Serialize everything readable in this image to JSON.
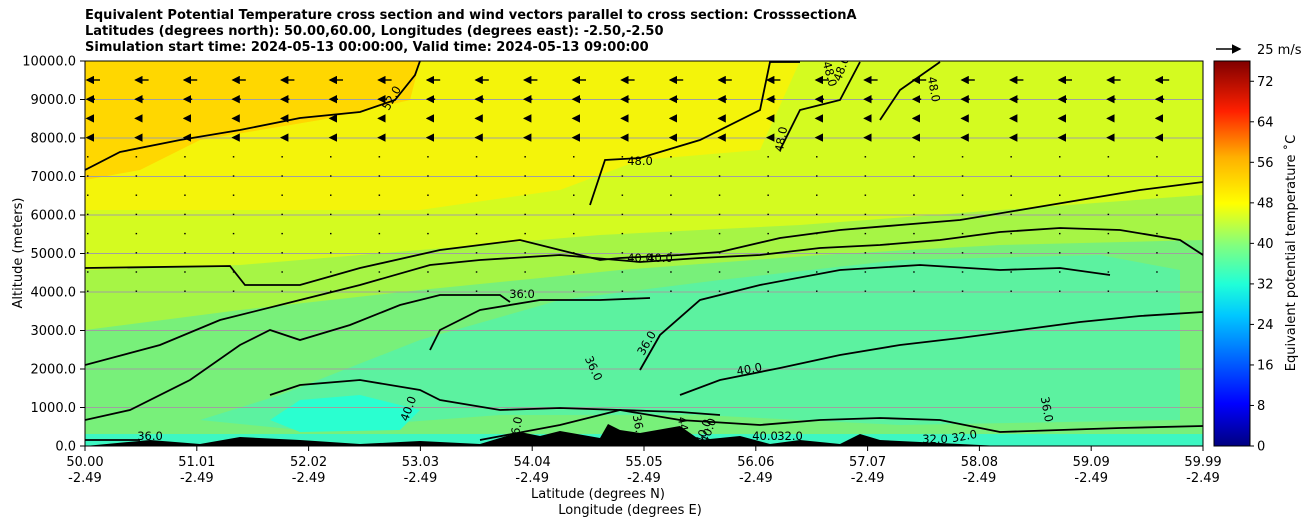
{
  "chart_data": {
    "type": "heatmap",
    "title_lines": [
      "Equivalent Potential Temperature cross section and wind vectors parallel to cross section: CrosssectionA",
      "Latitudes (degrees north): 50.00,60.00, Longitudes (degrees east): -2.50,-2.50",
      "Simulation start time: 2024-05-13 00:00:00, Valid time: 2024-05-13 09:00:00"
    ],
    "ylabel": "Altitude (meters)",
    "xlabel": "Latitude (degrees N)",
    "xlabel2": "Longitude (degrees E)",
    "ylim": [
      0,
      10000
    ],
    "y_ticks": [
      "0.0",
      "1000.0",
      "2000.0",
      "3000.0",
      "4000.0",
      "5000.0",
      "6000.0",
      "7000.0",
      "8000.0",
      "9000.0",
      "10000.0"
    ],
    "x_ticks_lat": [
      "50.00",
      "51.01",
      "52.02",
      "53.03",
      "54.04",
      "55.05",
      "56.06",
      "57.07",
      "58.08",
      "59.09",
      "59.99"
    ],
    "x_ticks_lon": [
      "-2.49",
      "-2.49",
      "-2.49",
      "-2.49",
      "-2.49",
      "-2.49",
      "-2.49",
      "-2.49",
      "-2.49",
      "-2.49",
      "-2.49"
    ],
    "colorbar": {
      "label": "Equivalent potential temperature $^\\circ$C",
      "label_display": "Equivalent potential temperature ˚C",
      "range": [
        0,
        76
      ],
      "ticks": [
        "0",
        "8",
        "16",
        "24",
        "32",
        "40",
        "48",
        "56",
        "64",
        "72"
      ]
    },
    "wind_key": "25 m/s",
    "contour_labels": [
      "52.0",
      "48.0",
      "48.0",
      "48.0",
      "48.0",
      "48.0",
      "40.0",
      "40.0",
      "36.0",
      "36.0",
      "36.0",
      "36.0",
      "36.0",
      "40.0",
      "40.0",
      "32.0",
      "32.0",
      "32.0",
      "36.0",
      "44.0",
      "40.0",
      "40.0",
      "36.0",
      "40.0"
    ]
  }
}
